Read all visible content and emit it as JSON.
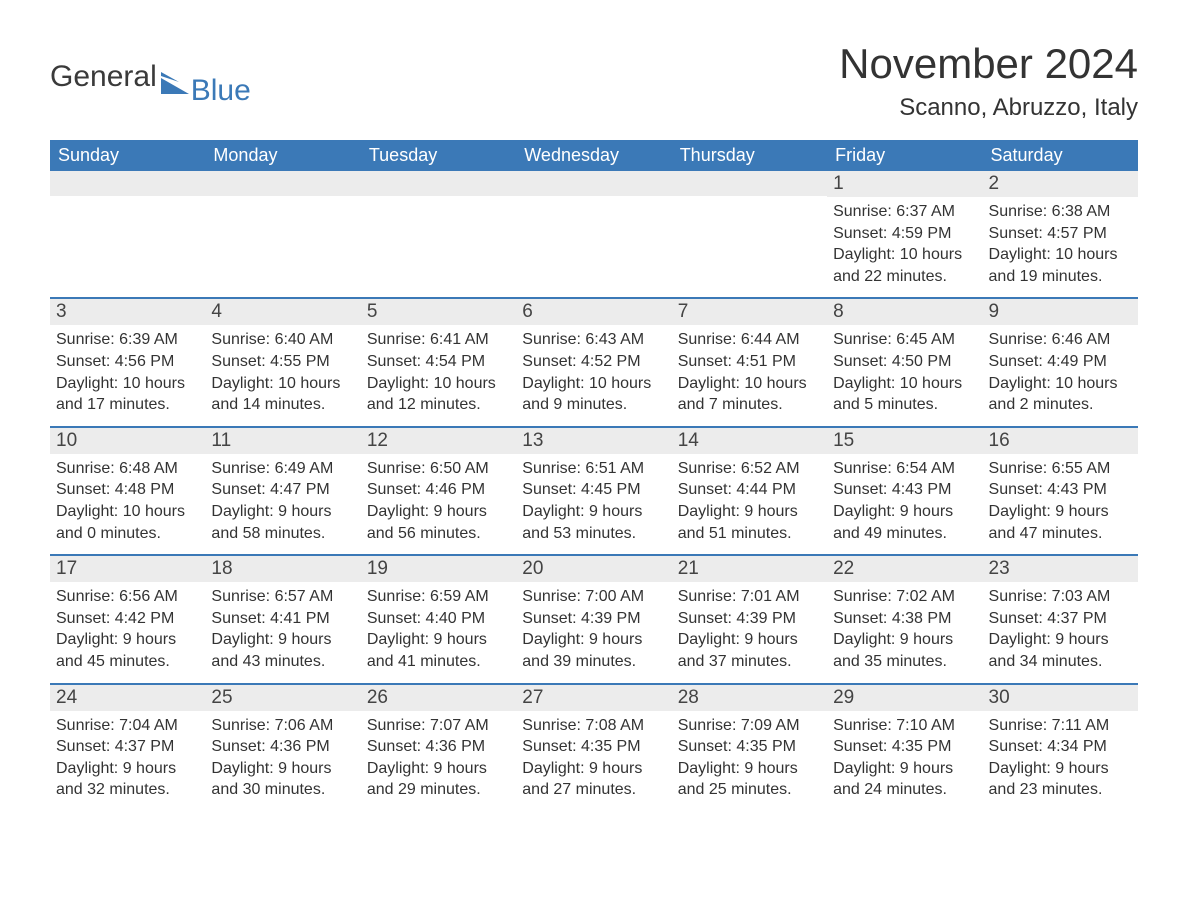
{
  "logo": {
    "text1": "General",
    "text2": "Blue"
  },
  "title": "November 2024",
  "location": "Scanno, Abruzzo, Italy",
  "colors": {
    "header_bg": "#3b79b7",
    "header_text": "#ffffff",
    "daynum_bg": "#ececec",
    "row_border": "#3b79b7",
    "body_text": "#333333",
    "page_bg": "#ffffff"
  },
  "weekdays": [
    "Sunday",
    "Monday",
    "Tuesday",
    "Wednesday",
    "Thursday",
    "Friday",
    "Saturday"
  ],
  "weeks": [
    [
      {
        "day": "",
        "sunrise": "",
        "sunset": "",
        "daylight": ""
      },
      {
        "day": "",
        "sunrise": "",
        "sunset": "",
        "daylight": ""
      },
      {
        "day": "",
        "sunrise": "",
        "sunset": "",
        "daylight": ""
      },
      {
        "day": "",
        "sunrise": "",
        "sunset": "",
        "daylight": ""
      },
      {
        "day": "",
        "sunrise": "",
        "sunset": "",
        "daylight": ""
      },
      {
        "day": "1",
        "sunrise": "Sunrise: 6:37 AM",
        "sunset": "Sunset: 4:59 PM",
        "daylight": "Daylight: 10 hours and 22 minutes."
      },
      {
        "day": "2",
        "sunrise": "Sunrise: 6:38 AM",
        "sunset": "Sunset: 4:57 PM",
        "daylight": "Daylight: 10 hours and 19 minutes."
      }
    ],
    [
      {
        "day": "3",
        "sunrise": "Sunrise: 6:39 AM",
        "sunset": "Sunset: 4:56 PM",
        "daylight": "Daylight: 10 hours and 17 minutes."
      },
      {
        "day": "4",
        "sunrise": "Sunrise: 6:40 AM",
        "sunset": "Sunset: 4:55 PM",
        "daylight": "Daylight: 10 hours and 14 minutes."
      },
      {
        "day": "5",
        "sunrise": "Sunrise: 6:41 AM",
        "sunset": "Sunset: 4:54 PM",
        "daylight": "Daylight: 10 hours and 12 minutes."
      },
      {
        "day": "6",
        "sunrise": "Sunrise: 6:43 AM",
        "sunset": "Sunset: 4:52 PM",
        "daylight": "Daylight: 10 hours and 9 minutes."
      },
      {
        "day": "7",
        "sunrise": "Sunrise: 6:44 AM",
        "sunset": "Sunset: 4:51 PM",
        "daylight": "Daylight: 10 hours and 7 minutes."
      },
      {
        "day": "8",
        "sunrise": "Sunrise: 6:45 AM",
        "sunset": "Sunset: 4:50 PM",
        "daylight": "Daylight: 10 hours and 5 minutes."
      },
      {
        "day": "9",
        "sunrise": "Sunrise: 6:46 AM",
        "sunset": "Sunset: 4:49 PM",
        "daylight": "Daylight: 10 hours and 2 minutes."
      }
    ],
    [
      {
        "day": "10",
        "sunrise": "Sunrise: 6:48 AM",
        "sunset": "Sunset: 4:48 PM",
        "daylight": "Daylight: 10 hours and 0 minutes."
      },
      {
        "day": "11",
        "sunrise": "Sunrise: 6:49 AM",
        "sunset": "Sunset: 4:47 PM",
        "daylight": "Daylight: 9 hours and 58 minutes."
      },
      {
        "day": "12",
        "sunrise": "Sunrise: 6:50 AM",
        "sunset": "Sunset: 4:46 PM",
        "daylight": "Daylight: 9 hours and 56 minutes."
      },
      {
        "day": "13",
        "sunrise": "Sunrise: 6:51 AM",
        "sunset": "Sunset: 4:45 PM",
        "daylight": "Daylight: 9 hours and 53 minutes."
      },
      {
        "day": "14",
        "sunrise": "Sunrise: 6:52 AM",
        "sunset": "Sunset: 4:44 PM",
        "daylight": "Daylight: 9 hours and 51 minutes."
      },
      {
        "day": "15",
        "sunrise": "Sunrise: 6:54 AM",
        "sunset": "Sunset: 4:43 PM",
        "daylight": "Daylight: 9 hours and 49 minutes."
      },
      {
        "day": "16",
        "sunrise": "Sunrise: 6:55 AM",
        "sunset": "Sunset: 4:43 PM",
        "daylight": "Daylight: 9 hours and 47 minutes."
      }
    ],
    [
      {
        "day": "17",
        "sunrise": "Sunrise: 6:56 AM",
        "sunset": "Sunset: 4:42 PM",
        "daylight": "Daylight: 9 hours and 45 minutes."
      },
      {
        "day": "18",
        "sunrise": "Sunrise: 6:57 AM",
        "sunset": "Sunset: 4:41 PM",
        "daylight": "Daylight: 9 hours and 43 minutes."
      },
      {
        "day": "19",
        "sunrise": "Sunrise: 6:59 AM",
        "sunset": "Sunset: 4:40 PM",
        "daylight": "Daylight: 9 hours and 41 minutes."
      },
      {
        "day": "20",
        "sunrise": "Sunrise: 7:00 AM",
        "sunset": "Sunset: 4:39 PM",
        "daylight": "Daylight: 9 hours and 39 minutes."
      },
      {
        "day": "21",
        "sunrise": "Sunrise: 7:01 AM",
        "sunset": "Sunset: 4:39 PM",
        "daylight": "Daylight: 9 hours and 37 minutes."
      },
      {
        "day": "22",
        "sunrise": "Sunrise: 7:02 AM",
        "sunset": "Sunset: 4:38 PM",
        "daylight": "Daylight: 9 hours and 35 minutes."
      },
      {
        "day": "23",
        "sunrise": "Sunrise: 7:03 AM",
        "sunset": "Sunset: 4:37 PM",
        "daylight": "Daylight: 9 hours and 34 minutes."
      }
    ],
    [
      {
        "day": "24",
        "sunrise": "Sunrise: 7:04 AM",
        "sunset": "Sunset: 4:37 PM",
        "daylight": "Daylight: 9 hours and 32 minutes."
      },
      {
        "day": "25",
        "sunrise": "Sunrise: 7:06 AM",
        "sunset": "Sunset: 4:36 PM",
        "daylight": "Daylight: 9 hours and 30 minutes."
      },
      {
        "day": "26",
        "sunrise": "Sunrise: 7:07 AM",
        "sunset": "Sunset: 4:36 PM",
        "daylight": "Daylight: 9 hours and 29 minutes."
      },
      {
        "day": "27",
        "sunrise": "Sunrise: 7:08 AM",
        "sunset": "Sunset: 4:35 PM",
        "daylight": "Daylight: 9 hours and 27 minutes."
      },
      {
        "day": "28",
        "sunrise": "Sunrise: 7:09 AM",
        "sunset": "Sunset: 4:35 PM",
        "daylight": "Daylight: 9 hours and 25 minutes."
      },
      {
        "day": "29",
        "sunrise": "Sunrise: 7:10 AM",
        "sunset": "Sunset: 4:35 PM",
        "daylight": "Daylight: 9 hours and 24 minutes."
      },
      {
        "day": "30",
        "sunrise": "Sunrise: 7:11 AM",
        "sunset": "Sunset: 4:34 PM",
        "daylight": "Daylight: 9 hours and 23 minutes."
      }
    ]
  ]
}
